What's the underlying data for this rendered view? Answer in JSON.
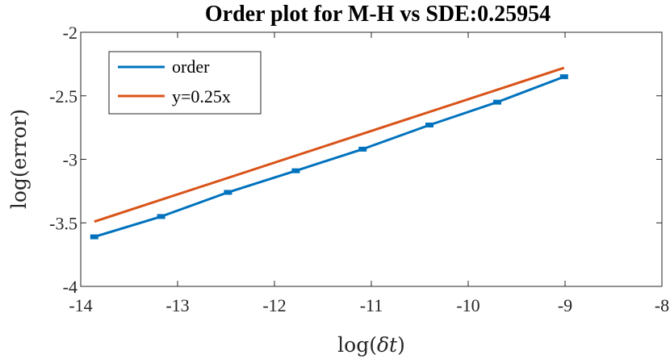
{
  "chart_data": {
    "type": "line",
    "title": "Order plot for M-H vs SDE:0.25954",
    "xlabel_prefix": "log(",
    "xlabel_symbol": "δt",
    "xlabel_suffix": ")",
    "ylabel": "log(error)",
    "xlim": [
      -14,
      -8
    ],
    "ylim": [
      -4,
      -2
    ],
    "x_ticks": [
      -14,
      -13,
      -12,
      -11,
      -10,
      -9,
      -8
    ],
    "x_tick_labels": [
      "-14",
      "-13",
      "-12",
      "-11",
      "-10",
      "-9",
      "-8"
    ],
    "y_ticks": [
      -4,
      -3.5,
      -3,
      -2.5,
      -2
    ],
    "y_tick_labels": [
      "-4",
      "-3.5",
      "-3",
      "-2.5",
      "-2"
    ],
    "grid": false,
    "legend_position": "top-left",
    "series": [
      {
        "name": "order",
        "color": "#0072BD",
        "marker": "square",
        "x": [
          -13.86,
          -13.17,
          -12.48,
          -11.78,
          -11.09,
          -10.4,
          -9.7,
          -9.01
        ],
        "y": [
          -3.61,
          -3.45,
          -3.26,
          -3.09,
          -2.92,
          -2.73,
          -2.55,
          -2.35
        ]
      },
      {
        "name": "y=0.25x",
        "color": "#D95319",
        "marker": "none",
        "x": [
          -13.86,
          -9.01
        ],
        "y": [
          -3.49,
          -2.28
        ]
      }
    ]
  }
}
